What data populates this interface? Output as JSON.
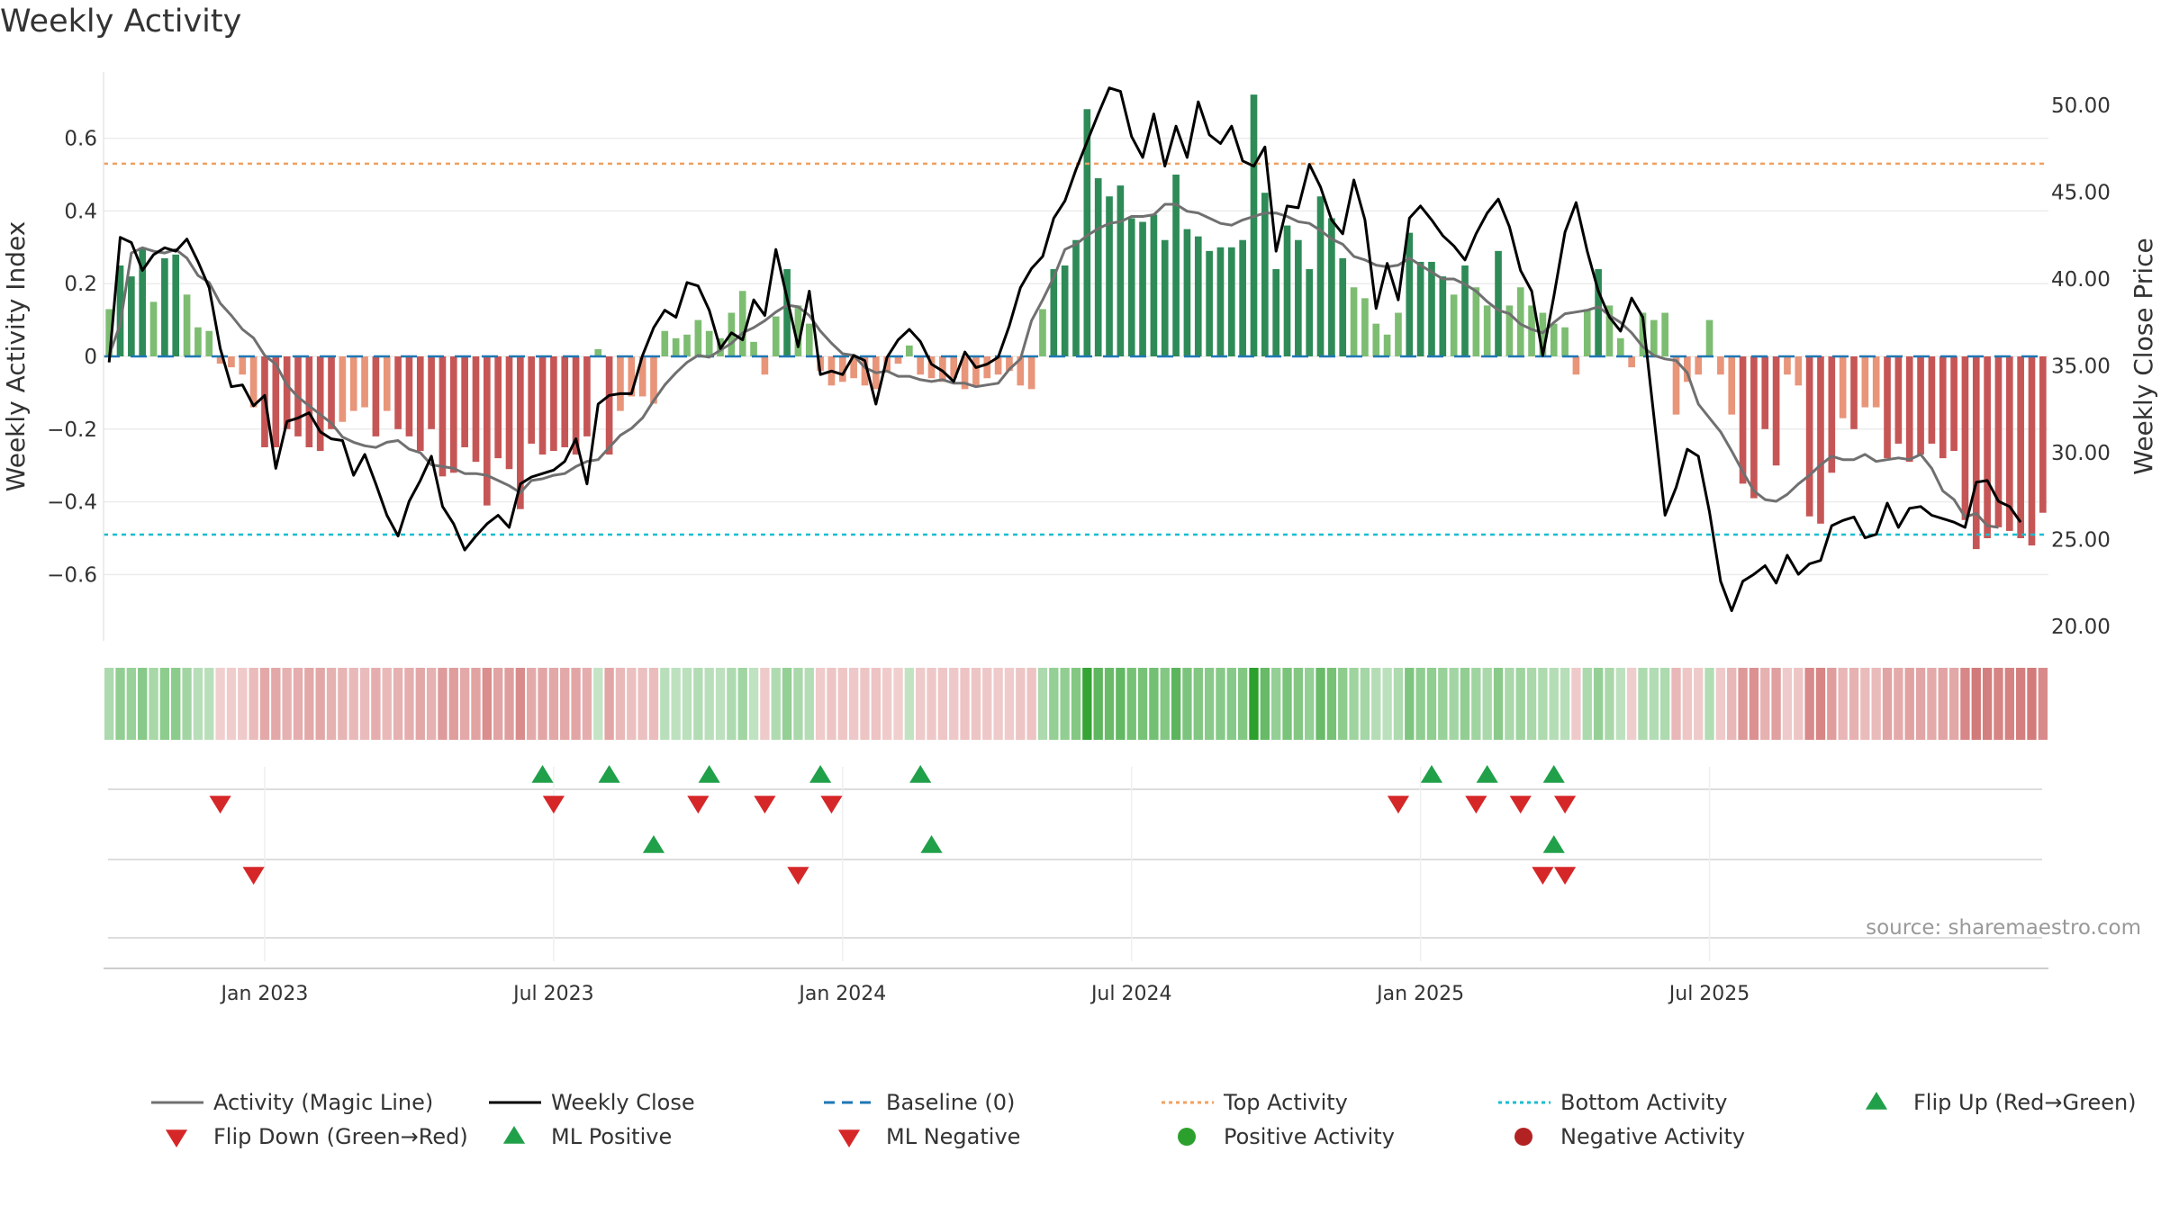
{
  "title": "Weekly Activity",
  "source_text": "source: sharemaestro.com",
  "colors": {
    "green_dark": "#2e8b57",
    "green_light": "#7dbd72",
    "red_dark": "#c65656",
    "red_light": "#e8957a",
    "magic_line": "#707070",
    "close_line": "#000000",
    "baseline": "#1f77b4",
    "top_line": "#f0a060",
    "bottom_line": "#17becf",
    "flip_up": "#21a04a",
    "flip_down": "#d62728",
    "pos_dot": "#2ca02c",
    "neg_dot": "#b22222"
  },
  "chart_data": {
    "type": "bar",
    "title": "Weekly Activity",
    "ylabel": "Weekly Activity Index",
    "y2label": "Weekly Close Price",
    "ylim": [
      -0.78,
      0.78
    ],
    "y2lim": [
      19.5,
      53.0
    ],
    "yticks": [
      {
        "v": 0.6,
        "label": "0.6"
      },
      {
        "v": 0.4,
        "label": "0.4"
      },
      {
        "v": 0.2,
        "label": "0.2"
      },
      {
        "v": 0,
        "label": "0"
      },
      {
        "v": -0.2,
        "label": "−0.2"
      },
      {
        "v": -0.4,
        "label": "−0.4"
      },
      {
        "v": -0.6,
        "label": "−0.6"
      }
    ],
    "y2ticks": [
      {
        "v": 50,
        "label": "50.00"
      },
      {
        "v": 45,
        "label": "45.00"
      },
      {
        "v": 40,
        "label": "40.00"
      },
      {
        "v": 35,
        "label": "35.00"
      },
      {
        "v": 30,
        "label": "30.00"
      },
      {
        "v": 25,
        "label": "25.00"
      },
      {
        "v": 20,
        "label": "20.00"
      }
    ],
    "xticks": [
      {
        "week": 14.5,
        "label": "Jan 2023"
      },
      {
        "week": 40.5,
        "label": "Jul 2023"
      },
      {
        "week": 66.5,
        "label": "Jan 2024"
      },
      {
        "week": 92.5,
        "label": "Jul 2024"
      },
      {
        "week": 118.5,
        "label": "Jan 2025"
      },
      {
        "week": 144.5,
        "label": "Jul 2025"
      }
    ],
    "top_activity": 0.53,
    "bottom_activity": -0.49,
    "activity": [
      0.13,
      0.25,
      0.22,
      0.3,
      0.15,
      0.27,
      0.28,
      0.17,
      0.08,
      0.07,
      -0.02,
      -0.03,
      -0.05,
      -0.14,
      -0.25,
      -0.25,
      -0.2,
      -0.22,
      -0.25,
      -0.26,
      -0.2,
      -0.18,
      -0.15,
      -0.14,
      -0.22,
      -0.15,
      -0.2,
      -0.22,
      -0.26,
      -0.2,
      -0.33,
      -0.32,
      -0.25,
      -0.29,
      -0.41,
      -0.28,
      -0.31,
      -0.42,
      -0.24,
      -0.27,
      -0.26,
      -0.25,
      -0.27,
      -0.22,
      0.02,
      -0.27,
      -0.15,
      -0.11,
      -0.11,
      -0.13,
      0.07,
      0.05,
      0.06,
      0.1,
      0.07,
      0.05,
      0.12,
      0.18,
      0.04,
      -0.05,
      0.11,
      0.24,
      0.14,
      0.09,
      -0.04,
      -0.08,
      -0.07,
      -0.06,
      -0.08,
      -0.09,
      -0.04,
      -0.02,
      0.03,
      -0.05,
      -0.06,
      -0.07,
      -0.06,
      -0.09,
      -0.08,
      -0.06,
      -0.05,
      -0.04,
      -0.08,
      -0.09,
      0.13,
      0.24,
      0.25,
      0.32,
      0.68,
      0.49,
      0.44,
      0.47,
      0.38,
      0.37,
      0.39,
      0.32,
      0.5,
      0.35,
      0.33,
      0.29,
      0.3,
      0.3,
      0.32,
      0.72,
      0.45,
      0.24,
      0.36,
      0.32,
      0.24,
      0.44,
      0.38,
      0.27,
      0.19,
      0.16,
      0.09,
      0.06,
      0.12,
      0.34,
      0.26,
      0.26,
      0.22,
      0.17,
      0.25,
      0.19,
      0.14,
      0.29,
      0.14,
      0.19,
      0.14,
      0.12,
      0.09,
      0.08,
      -0.05,
      0.13,
      0.24,
      0.14,
      0.05,
      -0.03,
      0.12,
      0.1,
      0.12,
      -0.16,
      -0.07,
      -0.05,
      0.1,
      -0.05,
      -0.16,
      -0.35,
      -0.39,
      -0.2,
      -0.3,
      -0.05,
      -0.08,
      -0.44,
      -0.46,
      -0.32,
      -0.17,
      -0.2,
      -0.14,
      -0.14,
      -0.28,
      -0.24,
      -0.29,
      -0.27,
      -0.24,
      -0.28,
      -0.26,
      -0.45,
      -0.53,
      -0.5,
      -0.47,
      -0.48,
      -0.5,
      -0.52,
      -0.43
    ],
    "weekly_close": [
      35.2,
      42.4,
      42.1,
      40.5,
      41.4,
      41.8,
      41.6,
      42.3,
      41.0,
      39.5,
      36.0,
      33.8,
      33.9,
      32.7,
      33.3,
      29.1,
      31.8,
      32.0,
      32.3,
      31.2,
      30.8,
      30.7,
      28.7,
      29.9,
      28.2,
      26.4,
      25.2,
      27.2,
      28.4,
      29.8,
      26.9,
      25.9,
      24.4,
      25.2,
      25.9,
      26.4,
      25.7,
      28.2,
      28.6,
      28.8,
      29.0,
      29.5,
      30.8,
      28.2,
      32.8,
      33.3,
      33.4,
      33.4,
      35.6,
      37.2,
      38.2,
      37.8,
      39.8,
      39.6,
      38.2,
      36.0,
      36.9,
      36.5,
      38.8,
      37.9,
      41.7,
      38.9,
      36.1,
      39.3,
      34.5,
      34.7,
      34.5,
      35.6,
      35.3,
      32.8,
      35.5,
      36.5,
      37.1,
      36.4,
      35.1,
      34.7,
      34.1,
      35.8,
      34.9,
      35.1,
      35.5,
      37.3,
      39.5,
      40.6,
      41.3,
      43.5,
      44.5,
      46.3,
      47.9,
      49.5,
      51.0,
      50.8,
      48.2,
      47.0,
      49.5,
      46.5,
      48.8,
      47.0,
      50.2,
      48.3,
      47.8,
      48.8,
      46.8,
      46.5,
      47.6,
      41.6,
      44.2,
      44.1,
      46.6,
      45.3,
      43.4,
      42.6,
      45.7,
      43.4,
      38.3,
      40.9,
      38.8,
      43.5,
      44.2,
      43.4,
      42.5,
      41.9,
      41.1,
      42.6,
      43.8,
      44.6,
      43.0,
      40.5,
      39.3,
      35.6,
      39.0,
      42.7,
      44.4,
      41.6,
      39.3,
      37.8,
      37.0,
      38.9,
      37.8,
      32.1,
      26.4,
      28.0,
      30.2,
      29.8,
      26.6,
      22.6,
      20.9,
      22.6,
      23.0,
      23.5,
      22.5,
      24.1,
      23.0,
      23.6,
      23.8,
      25.8,
      26.1,
      26.3,
      25.1,
      25.3,
      27.1,
      25.7,
      26.8,
      26.9,
      26.4,
      26.2,
      26.0,
      25.7,
      28.3,
      28.4,
      27.2,
      26.9,
      26.0
    ],
    "magic_line": [
      35.6,
      37.4,
      41.5,
      41.8,
      41.6,
      41.5,
      41.7,
      41.2,
      40.2,
      39.8,
      38.6,
      37.9,
      37.1,
      36.6,
      35.6,
      35.1,
      33.9,
      33.2,
      32.7,
      32.2,
      31.7,
      30.9,
      30.6,
      30.4,
      30.3,
      30.6,
      30.7,
      30.2,
      30.0,
      29.3,
      29.2,
      29.1,
      28.8,
      28.8,
      28.7,
      28.4,
      28.1,
      27.7,
      28.4,
      28.5,
      28.7,
      28.8,
      29.2,
      29.5,
      29.6,
      30.3,
      31.0,
      31.4,
      32.0,
      33.0,
      33.9,
      34.6,
      35.2,
      35.6,
      35.5,
      35.9,
      36.3,
      36.9,
      37.2,
      37.6,
      38.1,
      38.5,
      38.4,
      37.9,
      37.0,
      36.3,
      35.7,
      35.6,
      34.9,
      34.6,
      34.7,
      34.4,
      34.4,
      34.2,
      34.1,
      34.2,
      34.0,
      34.0,
      33.8,
      33.9,
      34.0,
      34.8,
      35.4,
      37.6,
      38.8,
      40.1,
      41.7,
      42.0,
      42.5,
      42.9,
      43.2,
      43.3,
      43.6,
      43.6,
      43.7,
      44.3,
      44.3,
      43.9,
      43.8,
      43.5,
      43.2,
      43.1,
      43.4,
      43.6,
      43.8,
      43.8,
      43.6,
      43.3,
      43.2,
      42.8,
      42.3,
      42.0,
      41.3,
      41.1,
      40.8,
      40.7,
      40.8,
      41.2,
      40.8,
      40.4,
      40.0,
      40.0,
      39.7,
      39.3,
      38.7,
      38.2,
      38.0,
      37.4,
      37.1,
      36.9,
      37.5,
      38.0,
      38.1,
      38.2,
      38.4,
      37.9,
      37.5,
      36.9,
      36.1,
      35.6,
      35.4,
      35.3,
      34.6,
      32.8,
      32.0,
      31.2,
      30.1,
      28.9,
      27.8,
      27.3,
      27.2,
      27.6,
      28.2,
      28.7,
      29.3,
      29.8,
      29.6,
      29.6,
      29.9,
      29.5,
      29.6,
      29.7,
      29.6,
      29.9,
      29.1,
      27.8,
      27.3,
      26.3,
      26.5,
      25.8,
      25.7
    ]
  },
  "heat_strip_palette": {
    "pos_dark": "#2ca02c",
    "pos_light": "#c8e6c9",
    "neg_dark": "#c75a5a",
    "neg_light": "#f2d2d2"
  },
  "flip_rows": {
    "flip_up": [
      39,
      45,
      54,
      64,
      73,
      119,
      124,
      130
    ],
    "flip_down": [
      10,
      40,
      53,
      59,
      65,
      116,
      123,
      127,
      131
    ],
    "ml_positive": [
      49,
      74,
      130
    ],
    "ml_negative": [
      13,
      62,
      129,
      131
    ],
    "positive_activity": [],
    "negative_activity": []
  },
  "legend": [
    {
      "label": "Activity (Magic Line)",
      "kind": "line",
      "color": "#707070",
      "dash": ""
    },
    {
      "label": "Weekly Close",
      "kind": "line",
      "color": "#000000",
      "dash": ""
    },
    {
      "label": "Baseline (0)",
      "kind": "line",
      "color": "#1f77b4",
      "dash": "12,8"
    },
    {
      "label": "Top Activity",
      "kind": "line",
      "color": "#f0a060",
      "dash": "4,4"
    },
    {
      "label": "Bottom Activity",
      "kind": "line",
      "color": "#17becf",
      "dash": "4,4"
    },
    {
      "label": "Flip Up (Red→Green)",
      "kind": "up",
      "color": "#21a04a"
    },
    {
      "label": "Flip Down (Green→Red)",
      "kind": "down",
      "color": "#d62728"
    },
    {
      "label": "ML Positive",
      "kind": "up",
      "color": "#21a04a"
    },
    {
      "label": "ML Negative",
      "kind": "down",
      "color": "#d62728"
    },
    {
      "label": "Positive Activity",
      "kind": "dot",
      "color": "#2ca02c"
    },
    {
      "label": "Negative Activity",
      "kind": "dot",
      "color": "#b22222"
    }
  ]
}
